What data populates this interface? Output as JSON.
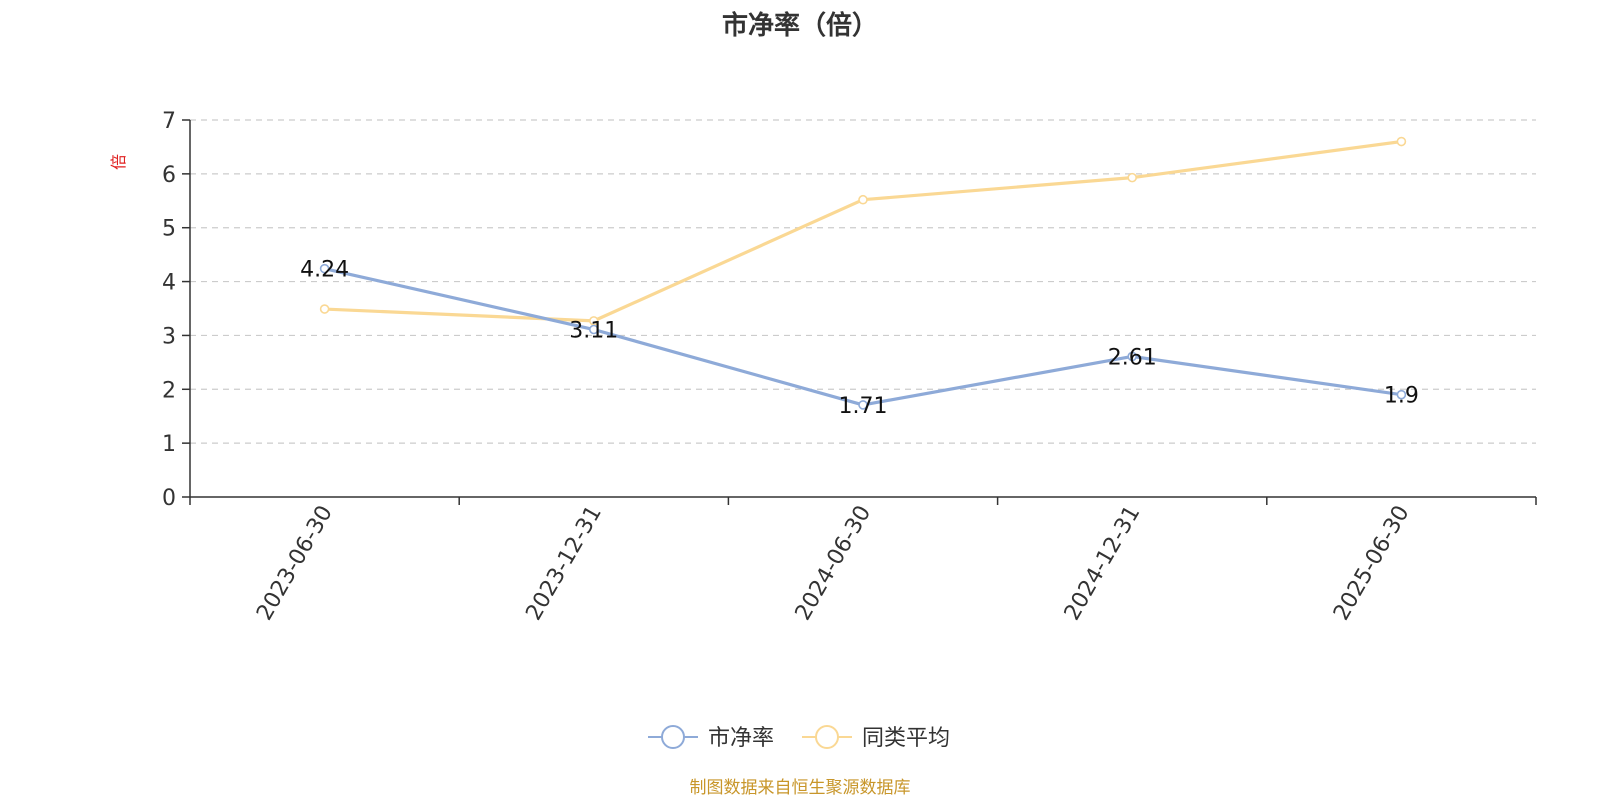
{
  "chart_data": {
    "type": "line",
    "title": "市净率（倍）",
    "ylabel": "倍",
    "ylim": [
      0,
      7
    ],
    "yticks": [
      0,
      1,
      2,
      3,
      4,
      5,
      6,
      7
    ],
    "grid": true,
    "legend_position": "bottom-center",
    "categories": [
      "2023-06-30",
      "2023-12-31",
      "2024-06-30",
      "2024-12-31",
      "2025-06-30"
    ],
    "series": [
      {
        "name": "市净率",
        "color": "#8eaad8",
        "values": [
          4.24,
          3.11,
          1.71,
          2.61,
          1.9
        ],
        "labels": [
          "4.24",
          "3.11",
          "1.71",
          "2.61",
          "1.9"
        ]
      },
      {
        "name": "同类平均",
        "color": "#fad894",
        "values": [
          3.49,
          3.27,
          5.52,
          5.93,
          6.6
        ]
      }
    ]
  },
  "source_text": "制图数据来自恒生聚源数据库"
}
